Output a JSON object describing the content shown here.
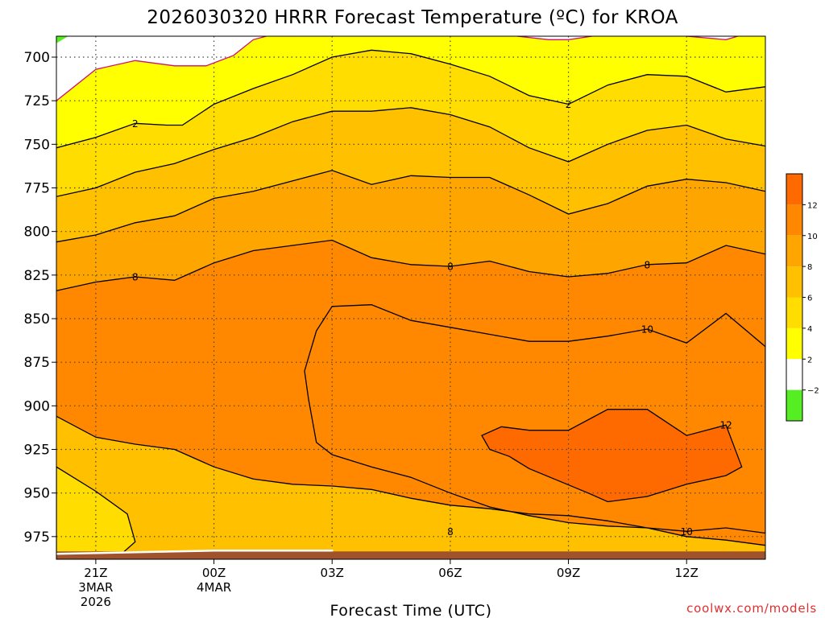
{
  "chart_data": {
    "type": "heatmap",
    "title": "2026030320 HRRR Forecast Temperature (ºC) for KROA",
    "xlabel": "Forecast Time (UTC)",
    "ylabel": "",
    "credit": "coolwx.com/models",
    "y_axis": {
      "quantity": "pressure (hPa)",
      "ticks": [
        700,
        725,
        750,
        775,
        800,
        825,
        850,
        875,
        900,
        925,
        950,
        975
      ],
      "range": [
        688,
        988
      ],
      "inverted": true
    },
    "x_axis": {
      "range_hours": [
        -1,
        17
      ],
      "ticks": [
        {
          "hour": 0,
          "label": "21Z",
          "sub": [
            "3MAR",
            "2026"
          ]
        },
        {
          "hour": 3,
          "label": "00Z",
          "sub": [
            "4MAR"
          ]
        },
        {
          "hour": 6,
          "label": "03Z",
          "sub": []
        },
        {
          "hour": 9,
          "label": "06Z",
          "sub": []
        },
        {
          "hour": 12,
          "label": "09Z",
          "sub": []
        },
        {
          "hour": 15,
          "label": "12Z",
          "sub": []
        }
      ]
    },
    "grid": true,
    "colorbar": {
      "placement": "right",
      "bins": [
        {
          "low": -4,
          "high": -2,
          "color": "#55ee22"
        },
        {
          "low": -2,
          "high": 2,
          "color": "#ffffff"
        },
        {
          "low": 2,
          "high": 4,
          "color": "#ffff00"
        },
        {
          "low": 4,
          "high": 6,
          "color": "#ffdd00"
        },
        {
          "low": 6,
          "high": 8,
          "color": "#ffc000"
        },
        {
          "low": 8,
          "high": 10,
          "color": "#ffa500"
        },
        {
          "low": 10,
          "high": 12,
          "color": "#ff8800"
        },
        {
          "low": 12,
          "high": 14,
          "color": "#ff6a00"
        }
      ],
      "tick_labels": [
        "−2",
        "2",
        "4",
        "6",
        "8",
        "10",
        "12"
      ]
    },
    "contours": {
      "freezing_line_color": "#cc1177",
      "line_color": "#000000",
      "levels": [
        {
          "temp": 0,
          "fill_below": "#ffffff",
          "points": [
            [
              -1,
              725
            ],
            [
              0,
              707
            ],
            [
              1,
              702
            ],
            [
              2,
              705
            ],
            [
              2.8,
              705
            ],
            [
              3.5,
              699
            ],
            [
              4,
              690
            ],
            [
              4.5,
              687
            ],
            [
              5,
              688
            ]
          ],
          "labels": []
        },
        {
          "temp": 0,
          "fill_below": "#ffffff",
          "points": [
            [
              10.7,
              688
            ],
            [
              11.5,
              690
            ],
            [
              12,
              690
            ],
            [
              12.6,
              688
            ]
          ],
          "labels": []
        },
        {
          "temp": 0,
          "fill_below": "#ffffff",
          "points": [
            [
              15,
              688
            ],
            [
              16,
              690
            ],
            [
              16.3,
              688
            ]
          ],
          "labels": []
        },
        {
          "temp": 2,
          "fill_below": "#ffff00",
          "points": [
            [
              -1,
              752
            ],
            [
              0,
              746
            ],
            [
              1,
              738
            ],
            [
              1.8,
              739
            ],
            [
              2.2,
              739
            ],
            [
              3,
              727
            ],
            [
              4,
              718
            ],
            [
              5,
              710
            ],
            [
              6,
              700
            ],
            [
              7,
              696
            ],
            [
              8,
              698
            ],
            [
              9,
              704
            ],
            [
              10,
              711
            ],
            [
              11,
              722
            ],
            [
              12,
              727
            ],
            [
              13,
              716
            ],
            [
              14,
              710
            ],
            [
              15,
              711
            ],
            [
              16,
              720
            ],
            [
              17,
              717
            ]
          ],
          "labels": [
            {
              "x": 1,
              "y": 738,
              "text": "2"
            },
            {
              "x": 12,
              "y": 727,
              "text": "2"
            }
          ]
        },
        {
          "temp": 4,
          "fill_below": "#ffdd00",
          "points": [
            [
              -1,
              780
            ],
            [
              0,
              775
            ],
            [
              1,
              766
            ],
            [
              2,
              761
            ],
            [
              3,
              753
            ],
            [
              4,
              746
            ],
            [
              5,
              737
            ],
            [
              6,
              731
            ],
            [
              7,
              731
            ],
            [
              8,
              729
            ],
            [
              9,
              733
            ],
            [
              10,
              740
            ],
            [
              11,
              752
            ],
            [
              12,
              760
            ],
            [
              13,
              750
            ],
            [
              14,
              742
            ],
            [
              15,
              739
            ],
            [
              16,
              747
            ],
            [
              17,
              751
            ]
          ],
          "labels": []
        },
        {
          "temp": 6,
          "fill_below": "#ffc000",
          "points": [
            [
              -1,
              806
            ],
            [
              0,
              802
            ],
            [
              1,
              795
            ],
            [
              2,
              791
            ],
            [
              3,
              781
            ],
            [
              4,
              777
            ],
            [
              5,
              771
            ],
            [
              6,
              765
            ],
            [
              7,
              773
            ],
            [
              8,
              768
            ],
            [
              9,
              769
            ],
            [
              10,
              769
            ],
            [
              11,
              779
            ],
            [
              12,
              790
            ],
            [
              13,
              784
            ],
            [
              14,
              774
            ],
            [
              15,
              770
            ],
            [
              16,
              772
            ],
            [
              17,
              777
            ]
          ],
          "labels": []
        },
        {
          "temp": 8,
          "fill_below": "#ffa500",
          "points": [
            [
              -1,
              834
            ],
            [
              0,
              829
            ],
            [
              1,
              826
            ],
            [
              2,
              828
            ],
            [
              3,
              818
            ],
            [
              4,
              811
            ],
            [
              5,
              808
            ],
            [
              6,
              805
            ],
            [
              7,
              815
            ],
            [
              8,
              819
            ],
            [
              9,
              820
            ],
            [
              10,
              817
            ],
            [
              11,
              823
            ],
            [
              12,
              826
            ],
            [
              13,
              824
            ],
            [
              14,
              819
            ],
            [
              15,
              818
            ],
            [
              16,
              808
            ],
            [
              17,
              813
            ]
          ],
          "labels": [
            {
              "x": 1,
              "y": 826,
              "text": "8"
            },
            {
              "x": 9,
              "y": 820,
              "text": "8"
            },
            {
              "x": 14,
              "y": 819,
              "text": "8"
            }
          ]
        },
        {
          "temp": 8,
          "fill_below": "#ffc000",
          "points": [
            [
              -1,
              906
            ],
            [
              0,
              918
            ],
            [
              1,
              922
            ],
            [
              2,
              925
            ],
            [
              3,
              935
            ],
            [
              4,
              942
            ],
            [
              5,
              945
            ],
            [
              6,
              946
            ],
            [
              7,
              948
            ],
            [
              8,
              953
            ],
            [
              9,
              957
            ],
            [
              10,
              959
            ],
            [
              11,
              962
            ],
            [
              12,
              963
            ],
            [
              13,
              966
            ],
            [
              14,
              970
            ],
            [
              15,
              975
            ],
            [
              16,
              977
            ],
            [
              17,
              980
            ]
          ],
          "labels": [
            {
              "x": 9,
              "y": 972,
              "text": "8"
            }
          ]
        },
        {
          "temp": 10,
          "fill_below": "#ff8800",
          "closed": true,
          "points": [
            [
              5.4,
              896
            ],
            [
              5.3,
              880
            ],
            [
              5.6,
              857
            ],
            [
              6,
              843
            ],
            [
              7,
              842
            ],
            [
              8,
              851
            ],
            [
              9,
              855
            ],
            [
              10,
              859
            ],
            [
              11,
              863
            ],
            [
              12,
              863
            ],
            [
              13,
              860
            ],
            [
              14,
              856
            ],
            [
              15,
              864
            ],
            [
              16,
              847
            ],
            [
              17,
              866
            ],
            [
              17,
              870
            ],
            [
              17,
              973
            ],
            [
              16,
              970
            ],
            [
              15,
              972
            ],
            [
              14,
              970
            ],
            [
              13,
              969
            ],
            [
              12,
              967
            ],
            [
              11,
              963
            ],
            [
              10,
              958
            ],
            [
              9,
              950
            ],
            [
              8,
              941
            ],
            [
              7,
              935
            ],
            [
              6,
              928
            ],
            [
              5.6,
              921
            ]
          ],
          "labels": [
            {
              "x": 14,
              "y": 856,
              "text": "10"
            },
            {
              "x": 15,
              "y": 972,
              "text": "10"
            }
          ]
        },
        {
          "temp": 12,
          "fill_below": "#ff6a00",
          "closed": true,
          "points": [
            [
              9.8,
              917
            ],
            [
              10.3,
              912
            ],
            [
              11,
              914
            ],
            [
              12,
              914
            ],
            [
              13,
              902
            ],
            [
              14,
              902
            ],
            [
              15,
              917
            ],
            [
              16,
              911
            ],
            [
              16.4,
              935
            ],
            [
              16,
              940
            ],
            [
              15,
              945
            ],
            [
              14,
              952
            ],
            [
              13,
              955
            ],
            [
              12.5,
              950
            ],
            [
              11,
              936
            ],
            [
              10.5,
              929
            ],
            [
              10,
              925
            ]
          ],
          "labels": [
            {
              "x": 16,
              "y": 911,
              "text": "12"
            }
          ]
        },
        {
          "temp": 6,
          "fill_below": "#ffdd00",
          "closed": true,
          "points": [
            [
              -1,
              935
            ],
            [
              0,
              949
            ],
            [
              0.8,
              962
            ],
            [
              1,
              978
            ],
            [
              0.5,
              988
            ],
            [
              -1,
              988
            ]
          ],
          "labels": []
        }
      ],
      "green_corner": {
        "fill": "#55ee22",
        "points": [
          [
            -1,
            688
          ],
          [
            -0.7,
            688
          ],
          [
            -1,
            692
          ]
        ]
      }
    },
    "terrain": {
      "fill": "#a0522d",
      "top_hpa": 983.5
    }
  }
}
